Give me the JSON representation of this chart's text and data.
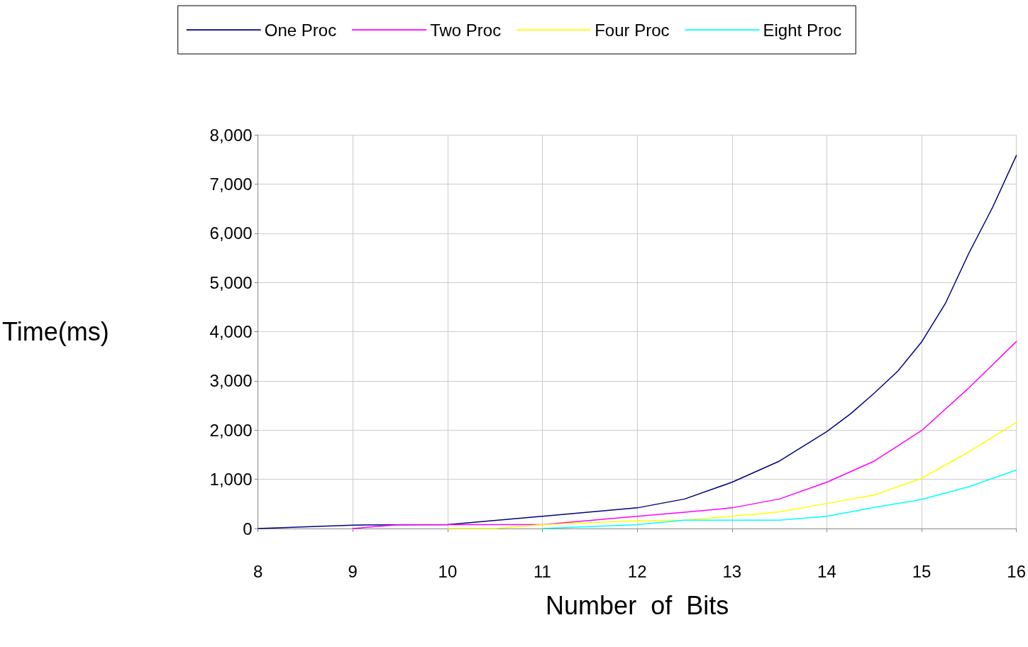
{
  "chart_data": {
    "type": "line",
    "xlabel": "Number  of  Bits",
    "ylabel": "Time(ms)",
    "xlim": [
      8,
      16
    ],
    "xticks": [
      8,
      9,
      10,
      11,
      12,
      13,
      14,
      15,
      16
    ],
    "ylim": [
      0,
      8000
    ],
    "yticks": [
      {
        "value": 0,
        "label": "0"
      },
      {
        "value": 1000,
        "label": "1,000"
      },
      {
        "value": 2000,
        "label": "2,000"
      },
      {
        "value": 3000,
        "label": "3,000"
      },
      {
        "value": 4000,
        "label": "4,000"
      },
      {
        "value": 5000,
        "label": "5,000"
      },
      {
        "value": 6000,
        "label": "6,000"
      },
      {
        "value": 7000,
        "label": "7,000"
      },
      {
        "value": 8000,
        "label": "8,000"
      }
    ],
    "grid": true,
    "legend": "top",
    "marker": "none",
    "line_style": "solid",
    "series": [
      {
        "name": "One Proc",
        "color": "#000080",
        "x": [
          8,
          9,
          10,
          11,
          12,
          12.5,
          13,
          13.5,
          14,
          14.25,
          14.5,
          14.75,
          15,
          15.25,
          15.5,
          15.75,
          16
        ],
        "values": [
          0,
          70,
          80,
          250,
          420,
          600,
          940,
          1370,
          1970,
          2330,
          2750,
          3200,
          3790,
          4570,
          5600,
          6530,
          7580
        ]
      },
      {
        "name": "Two Proc",
        "color": "#ff00ff",
        "x": [
          9,
          9.5,
          10,
          11,
          12,
          12.5,
          13,
          13.5,
          14,
          14.5,
          15,
          15.5,
          16
        ],
        "values": [
          0,
          80,
          80,
          80,
          250,
          330,
          420,
          600,
          940,
          1370,
          1990,
          2860,
          3800
        ]
      },
      {
        "name": "Four Proc",
        "color": "#ffff00",
        "x": [
          10,
          10.5,
          11,
          12,
          12.5,
          13,
          13.5,
          14,
          14.5,
          15,
          15.5,
          16
        ],
        "values": [
          0,
          0,
          80,
          160,
          170,
          250,
          340,
          510,
          680,
          1020,
          1560,
          2160
        ]
      },
      {
        "name": "Eight Proc",
        "color": "#00ffff",
        "x": [
          11,
          12,
          12.5,
          13,
          13.5,
          14,
          14.5,
          15,
          15.5,
          16
        ],
        "values": [
          0,
          80,
          170,
          170,
          170,
          250,
          430,
          590,
          850,
          1190
        ]
      }
    ]
  }
}
